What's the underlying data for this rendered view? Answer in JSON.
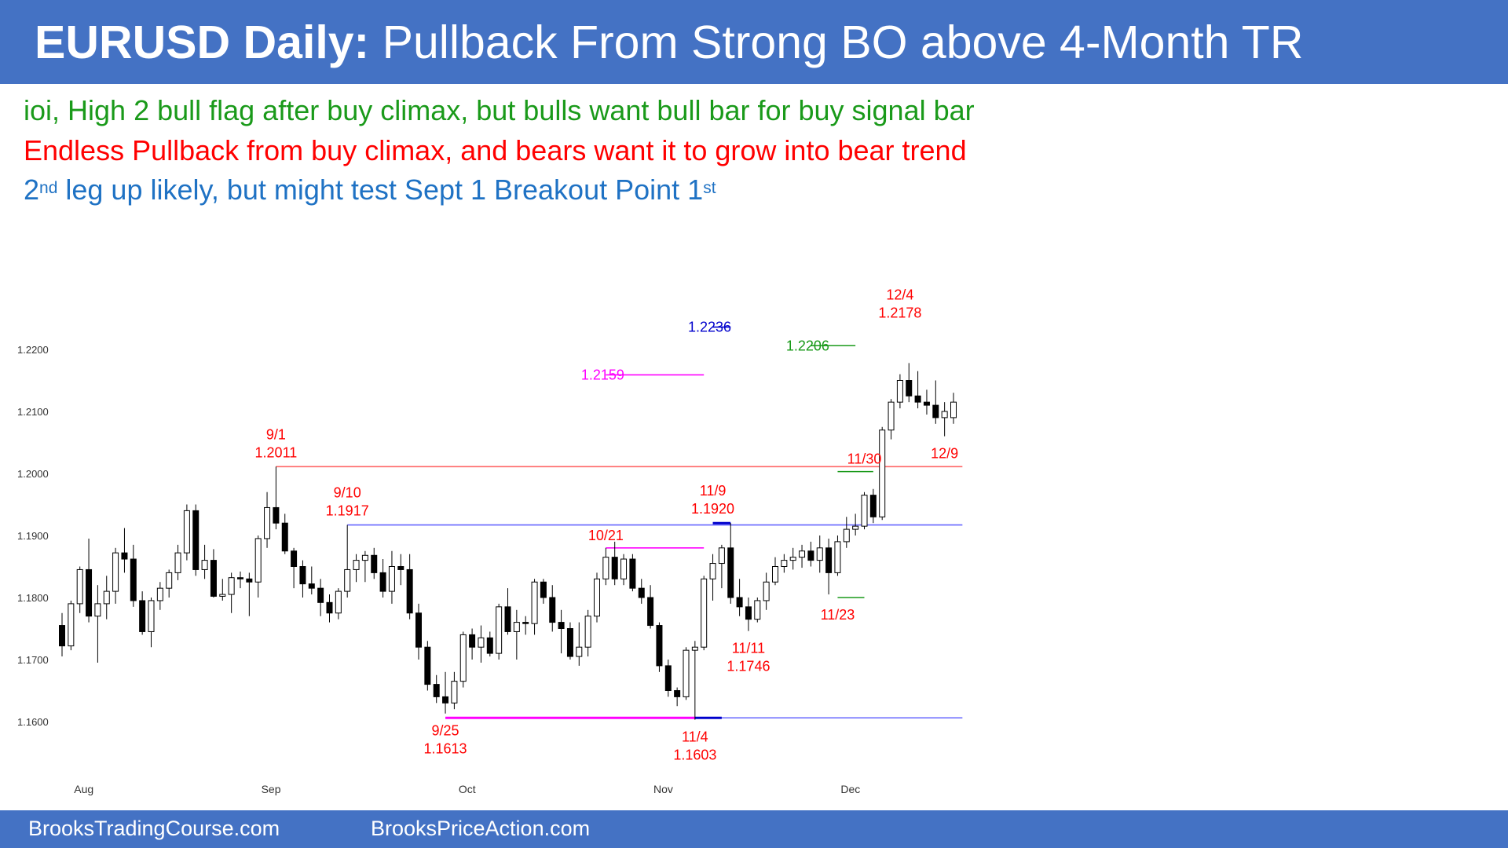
{
  "title": {
    "bold": "EURUSD Daily:",
    "rest": " Pullback From Strong BO above 4-Month TR"
  },
  "notes": {
    "line1": "ioi, High 2 bull flag after buy climax, but bulls want bull bar for buy signal bar",
    "line2": "Endless Pullback from buy climax, and bears want it to grow into bear trend",
    "line3_a": "2",
    "line3_sup1": "nd",
    "line3_b": " leg up likely, but might test Sept 1 Breakout Point 1",
    "line3_sup2": "st"
  },
  "footer": {
    "left": "BrooksTradingCourse.com",
    "right": "BrooksPriceAction.com"
  },
  "colors": {
    "bar": "#4472c4",
    "green": "#1a9a1a",
    "red": "#ff0000",
    "blue": "#1f72c4",
    "magenta": "#ff00ff",
    "navy": "#0000cc",
    "hline_red": "#ff6666",
    "hline_blue": "#6666ff"
  },
  "chart_data": {
    "type": "candlestick",
    "y_ticks": [
      "1.2200",
      "1.2100",
      "1.2000",
      "1.1900",
      "1.1800",
      "1.1700",
      "1.1600"
    ],
    "ylim": [
      1.158,
      1.224
    ],
    "x_labels": [
      {
        "label": "Aug",
        "index": 2
      },
      {
        "label": "Sep",
        "index": 23
      },
      {
        "label": "Oct",
        "index": 45
      },
      {
        "label": "Nov",
        "index": 67
      },
      {
        "label": "Dec",
        "index": 88
      }
    ],
    "candles": [
      [
        1.1755,
        1.1775,
        1.1705,
        1.1722
      ],
      [
        1.1722,
        1.1795,
        1.1715,
        1.179
      ],
      [
        1.179,
        1.185,
        1.1775,
        1.1845
      ],
      [
        1.1845,
        1.1895,
        1.176,
        1.177
      ],
      [
        1.177,
        1.182,
        1.1695,
        1.179
      ],
      [
        1.179,
        1.1835,
        1.1765,
        1.181
      ],
      [
        1.181,
        1.188,
        1.179,
        1.1872
      ],
      [
        1.1872,
        1.1912,
        1.184,
        1.1862
      ],
      [
        1.1862,
        1.1885,
        1.1785,
        1.1795
      ],
      [
        1.1795,
        1.181,
        1.174,
        1.1745
      ],
      [
        1.1745,
        1.18,
        1.172,
        1.1795
      ],
      [
        1.1795,
        1.1825,
        1.178,
        1.1815
      ],
      [
        1.1815,
        1.1845,
        1.18,
        1.184
      ],
      [
        1.184,
        1.1885,
        1.1828,
        1.1872
      ],
      [
        1.1872,
        1.195,
        1.186,
        1.194
      ],
      [
        1.194,
        1.195,
        1.1835,
        1.1845
      ],
      [
        1.1845,
        1.1885,
        1.183,
        1.186
      ],
      [
        1.186,
        1.1878,
        1.18,
        1.1802
      ],
      [
        1.1802,
        1.183,
        1.1795,
        1.1805
      ],
      [
        1.1805,
        1.184,
        1.1775,
        1.1832
      ],
      [
        1.1832,
        1.1842,
        1.1815,
        1.183
      ],
      [
        1.183,
        1.184,
        1.177,
        1.1825
      ],
      [
        1.1825,
        1.19,
        1.18,
        1.1895
      ],
      [
        1.1895,
        1.197,
        1.188,
        1.1945
      ],
      [
        1.1945,
        1.2011,
        1.191,
        1.192
      ],
      [
        1.192,
        1.1935,
        1.187,
        1.1875
      ],
      [
        1.1875,
        1.188,
        1.1815,
        1.185
      ],
      [
        1.185,
        1.186,
        1.18,
        1.1822
      ],
      [
        1.1822,
        1.185,
        1.1805,
        1.1815
      ],
      [
        1.1815,
        1.183,
        1.177,
        1.1792
      ],
      [
        1.1792,
        1.1805,
        1.176,
        1.1775
      ],
      [
        1.1775,
        1.1815,
        1.1765,
        1.181
      ],
      [
        1.181,
        1.1917,
        1.18,
        1.1845
      ],
      [
        1.1845,
        1.187,
        1.1825,
        1.186
      ],
      [
        1.186,
        1.1875,
        1.1825,
        1.1868
      ],
      [
        1.1868,
        1.188,
        1.183,
        1.184
      ],
      [
        1.184,
        1.1862,
        1.18,
        1.181
      ],
      [
        1.181,
        1.1875,
        1.179,
        1.185
      ],
      [
        1.185,
        1.187,
        1.182,
        1.1845
      ],
      [
        1.1845,
        1.187,
        1.1765,
        1.1775
      ],
      [
        1.1775,
        1.179,
        1.17,
        1.172
      ],
      [
        1.172,
        1.173,
        1.165,
        1.166
      ],
      [
        1.166,
        1.1675,
        1.163,
        1.164
      ],
      [
        1.164,
        1.168,
        1.1613,
        1.163
      ],
      [
        1.163,
        1.168,
        1.162,
        1.1665
      ],
      [
        1.1665,
        1.1745,
        1.1655,
        1.174
      ],
      [
        1.174,
        1.175,
        1.17,
        1.172
      ],
      [
        1.172,
        1.1755,
        1.1695,
        1.1735
      ],
      [
        1.1735,
        1.1745,
        1.1705,
        1.171
      ],
      [
        1.171,
        1.179,
        1.17,
        1.1785
      ],
      [
        1.1785,
        1.1815,
        1.174,
        1.1745
      ],
      [
        1.1745,
        1.178,
        1.17,
        1.176
      ],
      [
        1.176,
        1.177,
        1.174,
        1.1758
      ],
      [
        1.1758,
        1.183,
        1.174,
        1.1825
      ],
      [
        1.1825,
        1.183,
        1.179,
        1.18
      ],
      [
        1.18,
        1.182,
        1.1745,
        1.176
      ],
      [
        1.176,
        1.178,
        1.171,
        1.175
      ],
      [
        1.175,
        1.176,
        1.17,
        1.1705
      ],
      [
        1.1705,
        1.176,
        1.169,
        1.172
      ],
      [
        1.172,
        1.178,
        1.1705,
        1.177
      ],
      [
        1.177,
        1.184,
        1.176,
        1.183
      ],
      [
        1.183,
        1.188,
        1.182,
        1.1865
      ],
      [
        1.1865,
        1.189,
        1.182,
        1.183
      ],
      [
        1.183,
        1.187,
        1.182,
        1.1862
      ],
      [
        1.1862,
        1.187,
        1.181,
        1.1815
      ],
      [
        1.1815,
        1.183,
        1.179,
        1.18
      ],
      [
        1.18,
        1.182,
        1.175,
        1.1755
      ],
      [
        1.1755,
        1.176,
        1.168,
        1.169
      ],
      [
        1.169,
        1.17,
        1.164,
        1.165
      ],
      [
        1.165,
        1.1655,
        1.1625,
        1.164
      ],
      [
        1.164,
        1.172,
        1.1635,
        1.1715
      ],
      [
        1.1715,
        1.173,
        1.1603,
        1.172
      ],
      [
        1.172,
        1.1835,
        1.1715,
        1.183
      ],
      [
        1.183,
        1.187,
        1.1795,
        1.1855
      ],
      [
        1.1855,
        1.1885,
        1.1815,
        1.188
      ],
      [
        1.188,
        1.192,
        1.179,
        1.18
      ],
      [
        1.18,
        1.183,
        1.177,
        1.1785
      ],
      [
        1.1785,
        1.18,
        1.1746,
        1.1765
      ],
      [
        1.1765,
        1.18,
        1.176,
        1.1795
      ],
      [
        1.1795,
        1.184,
        1.178,
        1.1825
      ],
      [
        1.1825,
        1.1865,
        1.182,
        1.185
      ],
      [
        1.185,
        1.187,
        1.184,
        1.186
      ],
      [
        1.186,
        1.188,
        1.1845,
        1.1865
      ],
      [
        1.1865,
        1.1885,
        1.1848,
        1.1875
      ],
      [
        1.1875,
        1.189,
        1.185,
        1.186
      ],
      [
        1.186,
        1.19,
        1.184,
        1.188
      ],
      [
        1.188,
        1.1895,
        1.1805,
        1.184
      ],
      [
        1.184,
        1.19,
        1.1835,
        1.189
      ],
      [
        1.189,
        1.193,
        1.188,
        1.191
      ],
      [
        1.191,
        1.1935,
        1.19,
        1.1915
      ],
      [
        1.1915,
        1.197,
        1.191,
        1.1965
      ],
      [
        1.1965,
        1.1975,
        1.192,
        1.193
      ],
      [
        1.193,
        1.2075,
        1.1925,
        1.207
      ],
      [
        1.207,
        1.212,
        1.2055,
        1.2115
      ],
      [
        1.2115,
        1.216,
        1.2105,
        1.215
      ],
      [
        1.215,
        1.2178,
        1.2115,
        1.2125
      ],
      [
        1.2125,
        1.2165,
        1.2105,
        1.2115
      ],
      [
        1.2115,
        1.2135,
        1.2095,
        1.211
      ],
      [
        1.211,
        1.215,
        1.208,
        1.209
      ],
      [
        1.209,
        1.2115,
        1.206,
        1.21
      ],
      [
        1.209,
        1.213,
        1.208,
        1.2115
      ]
    ],
    "levels": [
      {
        "y": 1.2011,
        "color": "#ff6666",
        "from": 24,
        "to": 101
      },
      {
        "y": 1.1917,
        "color": "#6666ff",
        "from": 32,
        "to": 101
      },
      {
        "y": 1.1606,
        "color": "#6666ff",
        "from": 71,
        "to": 101
      },
      {
        "y": 1.1606,
        "color": "#ff00ff",
        "from": 43,
        "to": 71,
        "bold": true
      },
      {
        "y": 1.1606,
        "color": "#0000cc",
        "from": 71,
        "to": 74,
        "bold": true
      },
      {
        "y": 1.192,
        "color": "#0000cc",
        "from": 73,
        "to": 75,
        "bold": true
      },
      {
        "y": 1.188,
        "color": "#ff00ff",
        "from": 61,
        "to": 72
      },
      {
        "y": 1.2159,
        "color": "#ff00ff",
        "from": 61,
        "to": 72
      },
      {
        "y": 1.2236,
        "color": "#0000cc",
        "from": 73,
        "to": 75
      },
      {
        "y": 1.2206,
        "color": "#1a9a1a",
        "from": 84,
        "to": 89
      },
      {
        "y": 1.2003,
        "color": "#1a9a1a",
        "from": 87,
        "to": 91
      },
      {
        "y": 1.18,
        "color": "#1a9a1a",
        "from": 87,
        "to": 90
      }
    ],
    "annotations": [
      {
        "lines": [
          "9/1",
          "1.2011"
        ],
        "color": "#ff0000",
        "index": 24,
        "y": 1.2011,
        "pos": "above"
      },
      {
        "lines": [
          "9/10",
          "1.1917"
        ],
        "color": "#ff0000",
        "index": 32,
        "y": 1.1917,
        "pos": "above"
      },
      {
        "lines": [
          "10/21"
        ],
        "color": "#ff0000",
        "index": 61,
        "y": 1.188,
        "pos": "above1"
      },
      {
        "lines": [
          "11/9",
          "1.1920"
        ],
        "color": "#ff0000",
        "index": 73,
        "y": 1.192,
        "pos": "above"
      },
      {
        "lines": [
          "11/30"
        ],
        "color": "#ff0000",
        "index": 90,
        "y": 1.2003,
        "pos": "above1"
      },
      {
        "lines": [
          "12/4",
          "1.2178"
        ],
        "color": "#ff0000",
        "index": 94,
        "y": 1.2236,
        "pos": "above"
      },
      {
        "lines": [
          "12/9"
        ],
        "color": "#ff0000",
        "index": 99,
        "y": 1.206,
        "pos": "below"
      },
      {
        "lines": [
          "11/23"
        ],
        "color": "#ff0000",
        "index": 87,
        "y": 1.18,
        "pos": "below"
      },
      {
        "lines": [
          "11/11",
          "1.1746"
        ],
        "color": "#ff0000",
        "index": 77,
        "y": 1.1746,
        "pos": "below"
      },
      {
        "lines": [
          "9/25",
          "1.1613"
        ],
        "color": "#ff0000",
        "index": 43,
        "y": 1.1613,
        "pos": "below"
      },
      {
        "lines": [
          "11/4",
          "1.1603"
        ],
        "color": "#ff0000",
        "index": 71,
        "y": 1.1603,
        "pos": "below"
      },
      {
        "lines": [
          "1.2236"
        ],
        "color": "#0000cc",
        "index": 73,
        "y": 1.2236,
        "pos": "left"
      },
      {
        "lines": [
          "1.2159"
        ],
        "color": "#ff00ff",
        "index": 61,
        "y": 1.2159,
        "pos": "left"
      },
      {
        "lines": [
          "1.2206"
        ],
        "color": "#1a9a1a",
        "index": 84,
        "y": 1.2206,
        "pos": "left"
      }
    ]
  }
}
